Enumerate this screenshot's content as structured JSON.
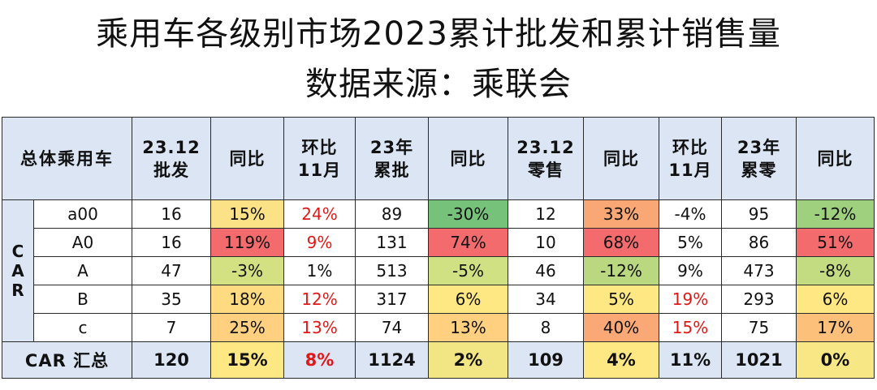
{
  "title": {
    "line1": "乘用车各级别市场2023累计批发和累计销售量",
    "line2": "数据来源：乘联会"
  },
  "chart_data": {
    "type": "table",
    "group_label": [
      "C",
      "A",
      "R"
    ],
    "columns": [
      [
        "总体乘用车"
      ],
      [
        "23.12",
        "批发"
      ],
      [
        "同比"
      ],
      [
        "环比",
        "11月"
      ],
      [
        "23年",
        "累批"
      ],
      [
        "同比"
      ],
      [
        "23.12",
        "零售"
      ],
      [
        "同比"
      ],
      [
        "环比",
        "11月"
      ],
      [
        "23年",
        "累零"
      ],
      [
        "同比"
      ]
    ],
    "rows": [
      [
        "a00",
        "16",
        "15%",
        "24%",
        "89",
        "-30%",
        "12",
        "33%",
        "-4%",
        "95",
        "-12%"
      ],
      [
        "A0",
        "16",
        "119%",
        "9%",
        "131",
        "74%",
        "10",
        "68%",
        "5%",
        "86",
        "51%"
      ],
      [
        "A",
        "47",
        "-3%",
        "1%",
        "513",
        "-5%",
        "46",
        "-12%",
        "9%",
        "473",
        "-8%"
      ],
      [
        "B",
        "35",
        "18%",
        "12%",
        "317",
        "6%",
        "34",
        "5%",
        "19%",
        "293",
        "6%"
      ],
      [
        "c",
        "7",
        "25%",
        "13%",
        "74",
        "13%",
        "8",
        "40%",
        "15%",
        "75",
        "17%"
      ]
    ],
    "total": [
      "CAR 汇总",
      "120",
      "15%",
      "8%",
      "1124",
      "2%",
      "109",
      "4%",
      "11%",
      "1021",
      "0%"
    ],
    "cell_colors": [
      [
        "",
        "",
        "#fbe286",
        "",
        "",
        "#77c27b",
        "",
        "#f9a875",
        "",
        "",
        "#9fd07d"
      ],
      [
        "",
        "",
        "#f46b6e",
        "",
        "",
        "#f46b6e",
        "",
        "#f46b6e",
        "",
        "",
        "#f46b6e"
      ],
      [
        "",
        "",
        "#d4e183",
        "",
        "",
        "#cfe183",
        "",
        "#b9d880",
        "",
        "",
        "#c4dc81"
      ],
      [
        "",
        "",
        "#feda80",
        "",
        "",
        "#fde883",
        "",
        "#fde883",
        "",
        "",
        "#fde883"
      ],
      [
        "",
        "",
        "#fed07f",
        "",
        "",
        "#fed07f",
        "",
        "#faa976",
        "",
        "",
        "#fdc07b"
      ]
    ],
    "total_colors": [
      "",
      "",
      "#fde883",
      "",
      "",
      "#f2e684",
      "",
      "#fde883",
      "",
      "",
      "#f7e885"
    ],
    "red_text": [
      [
        false,
        false,
        false,
        true,
        false,
        false,
        false,
        false,
        false,
        false,
        false
      ],
      [
        false,
        false,
        false,
        true,
        false,
        false,
        false,
        false,
        false,
        false,
        false
      ],
      [
        false,
        false,
        false,
        false,
        false,
        false,
        false,
        false,
        false,
        false,
        false
      ],
      [
        false,
        false,
        false,
        true,
        false,
        false,
        false,
        false,
        true,
        false,
        false
      ],
      [
        false,
        false,
        false,
        true,
        false,
        false,
        false,
        false,
        true,
        false,
        false
      ]
    ],
    "total_red": [
      false,
      false,
      false,
      true,
      false,
      false,
      false,
      false,
      false,
      false,
      false
    ]
  }
}
